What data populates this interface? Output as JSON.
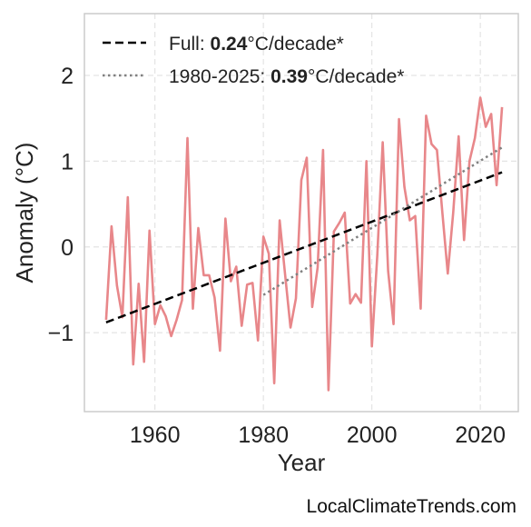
{
  "chart_data": {
    "type": "line",
    "xlabel": "Year",
    "ylabel": "Anomaly (°C)",
    "xlim": [
      1947,
      2027
    ],
    "ylim": [
      -1.92,
      2.72
    ],
    "x_ticks": [
      1960,
      1980,
      2000,
      2020
    ],
    "y_ticks": [
      2,
      1,
      0,
      -1
    ],
    "y_tick_labels": [
      "2",
      "1",
      "0",
      "−1"
    ],
    "grid": true,
    "legend_position": "top-left",
    "series": [
      {
        "color": "#e8878a",
        "style": "solid",
        "x": [
          1951,
          1952,
          1953,
          1954,
          1955,
          1956,
          1957,
          1958,
          1959,
          1960,
          1961,
          1962,
          1963,
          1964,
          1965,
          1966,
          1967,
          1968,
          1969,
          1970,
          1971,
          1972,
          1973,
          1974,
          1975,
          1976,
          1977,
          1978,
          1979,
          1980,
          1981,
          1982,
          1983,
          1984,
          1985,
          1986,
          1987,
          1988,
          1989,
          1990,
          1991,
          1992,
          1993,
          1994,
          1995,
          1996,
          1997,
          1998,
          1999,
          2000,
          2001,
          2002,
          2003,
          2004,
          2005,
          2006,
          2007,
          2008,
          2009,
          2010,
          2011,
          2012,
          2013,
          2014,
          2015,
          2016,
          2017,
          2018,
          2019,
          2020,
          2021,
          2022,
          2023,
          2024
        ],
        "y": [
          -0.85,
          0.24,
          -0.45,
          -0.82,
          0.58,
          -1.37,
          -0.43,
          -1.34,
          0.19,
          -0.9,
          -0.68,
          -0.81,
          -1.04,
          -0.85,
          -0.62,
          1.27,
          -0.72,
          0.22,
          -0.33,
          -0.33,
          -0.59,
          -1.21,
          0.33,
          -0.4,
          -0.23,
          -0.92,
          -0.44,
          -0.42,
          -1.09,
          0.12,
          -0.08,
          -1.59,
          0.31,
          -0.32,
          -0.94,
          -0.6,
          0.78,
          1.04,
          -0.7,
          -0.24,
          1.13,
          -1.67,
          0.18,
          0.28,
          0.4,
          -0.66,
          -0.55,
          -0.65,
          1.0,
          -1.16,
          -0.1,
          1.22,
          -0.28,
          -0.9,
          1.49,
          0.7,
          0.31,
          0.36,
          -0.72,
          1.53,
          1.2,
          1.13,
          0.4,
          -0.31,
          0.4,
          1.29,
          0.08,
          1.0,
          1.27,
          1.74,
          1.4,
          1.55,
          0.72,
          1.63
        ]
      },
      {
        "name": "Full: 0.24°C/decade*",
        "label_prefix": "Full: ",
        "label_value": "0.24",
        "label_suffix": "°C/decade*",
        "color": "#000000",
        "style": "dashed",
        "x": [
          1951,
          2024
        ],
        "y": [
          -0.88,
          0.87
        ]
      },
      {
        "name": "1980-2025: 0.39°C/decade*",
        "label_prefix": "1980-2025: ",
        "label_value": "0.39",
        "label_suffix": "°C/decade*",
        "color": "#808080",
        "style": "dotted",
        "x": [
          1980,
          2024
        ],
        "y": [
          -0.56,
          1.16
        ]
      }
    ]
  },
  "credit": "LocalClimateTrends.com"
}
